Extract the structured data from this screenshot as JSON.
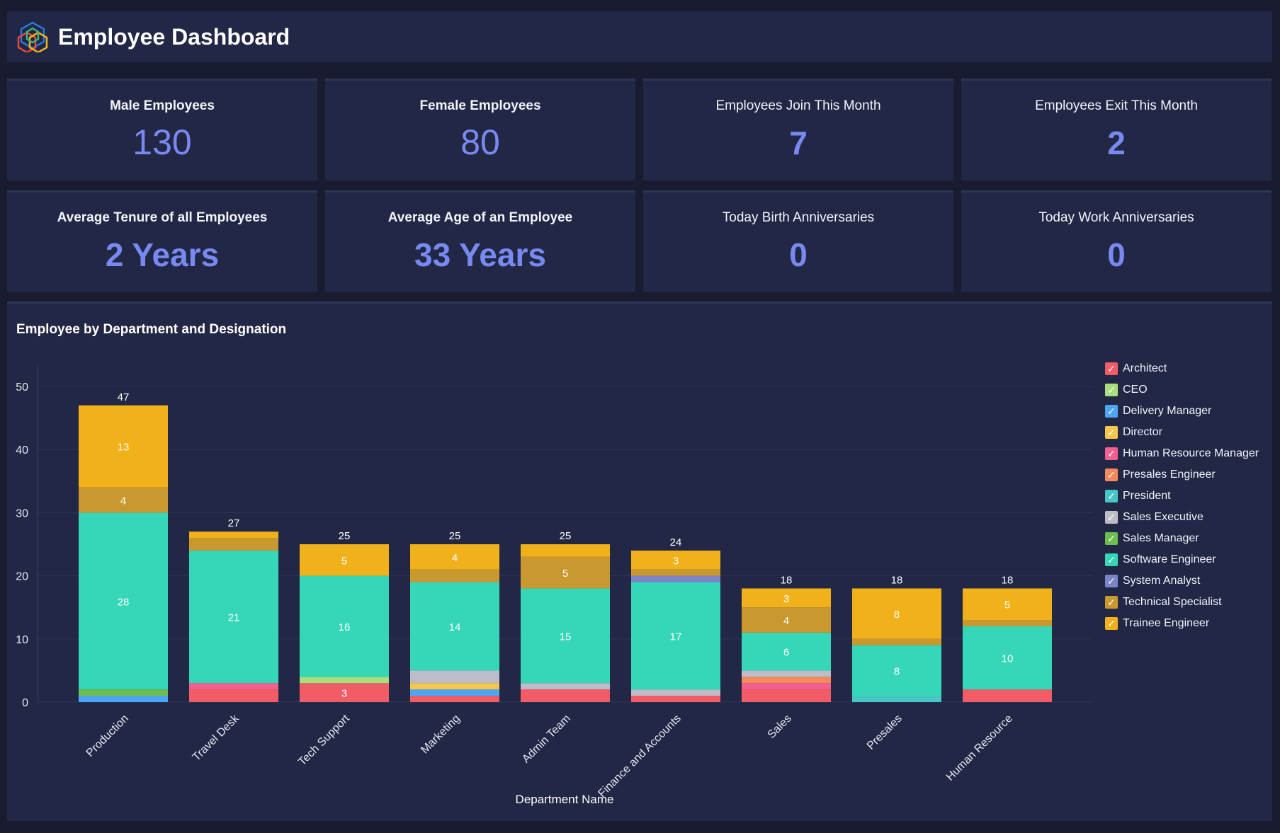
{
  "header": {
    "title": "Employee Dashboard"
  },
  "kpis": [
    {
      "label": "Male Employees",
      "value": "130"
    },
    {
      "label": "Female Employees",
      "value": "80"
    },
    {
      "label": "Employees Join This Month",
      "value": "7"
    },
    {
      "label": "Employees Exit This Month",
      "value": "2"
    },
    {
      "label": "Average Tenure of all Employees",
      "value": "2 Years"
    },
    {
      "label": "Average Age of an Employee",
      "value": "33 Years"
    },
    {
      "label": "Today Birth Anniversaries",
      "value": "0"
    },
    {
      "label": "Today Work Anniversaries",
      "value": "0"
    }
  ],
  "chart_data": {
    "type": "bar",
    "stacked": true,
    "title": "Employee by Department and Designation",
    "xlabel": "Department Name",
    "ylabel": "",
    "ylim": [
      0,
      50
    ],
    "yticks": [
      0,
      10,
      20,
      30,
      40,
      50
    ],
    "grid": true,
    "legend_position": "right",
    "categories": [
      "Production",
      "Travel Desk",
      "Tech Support",
      "Marketing",
      "Admin Team",
      "Finance and Accounts",
      "Sales",
      "Presales",
      "Human Resource"
    ],
    "totals": [
      47,
      27,
      25,
      25,
      25,
      24,
      18,
      18,
      18
    ],
    "series": [
      {
        "name": "Architect",
        "color": "#f25c66",
        "values": [
          0,
          2,
          3,
          1,
          2,
          1,
          2,
          0,
          2
        ]
      },
      {
        "name": "CEO",
        "color": "#a8df7e",
        "values": [
          0,
          0,
          1,
          0,
          0,
          0,
          0,
          0,
          0
        ]
      },
      {
        "name": "Delivery Manager",
        "color": "#4da6f5",
        "values": [
          1,
          0,
          0,
          1,
          0,
          0,
          0,
          0,
          0
        ]
      },
      {
        "name": "Director",
        "color": "#f6c64d",
        "values": [
          0,
          0,
          0,
          1,
          0,
          0,
          0,
          0,
          0
        ]
      },
      {
        "name": "Human Resource Manager",
        "color": "#f2608f",
        "values": [
          0,
          1,
          0,
          0,
          0,
          0,
          1,
          0,
          0
        ]
      },
      {
        "name": "Presales Engineer",
        "color": "#f48a5c",
        "values": [
          0,
          0,
          0,
          0,
          0,
          0,
          1,
          0,
          0
        ]
      },
      {
        "name": "President",
        "color": "#47c6c6",
        "values": [
          0,
          0,
          0,
          0,
          0,
          0,
          0,
          1,
          0
        ]
      },
      {
        "name": "Sales Executive",
        "color": "#bdbdc7",
        "values": [
          0,
          0,
          0,
          2,
          1,
          1,
          1,
          0,
          0
        ]
      },
      {
        "name": "Sales Manager",
        "color": "#6cbf4e",
        "values": [
          1,
          0,
          0,
          0,
          0,
          0,
          0,
          0,
          0
        ]
      },
      {
        "name": "Software Engineer",
        "color": "#36d6b8",
        "values": [
          28,
          21,
          16,
          14,
          15,
          17,
          6,
          8,
          10
        ]
      },
      {
        "name": "System Analyst",
        "color": "#7b84c7",
        "values": [
          0,
          0,
          0,
          0,
          0,
          1,
          0,
          0,
          0
        ]
      },
      {
        "name": "Technical Specialist",
        "color": "#c9992f",
        "values": [
          4,
          2,
          0,
          2,
          5,
          1,
          4,
          1,
          1
        ]
      },
      {
        "name": "Trainee Engineer",
        "color": "#f0b11b",
        "values": [
          13,
          1,
          5,
          4,
          2,
          3,
          3,
          8,
          5
        ]
      }
    ]
  }
}
